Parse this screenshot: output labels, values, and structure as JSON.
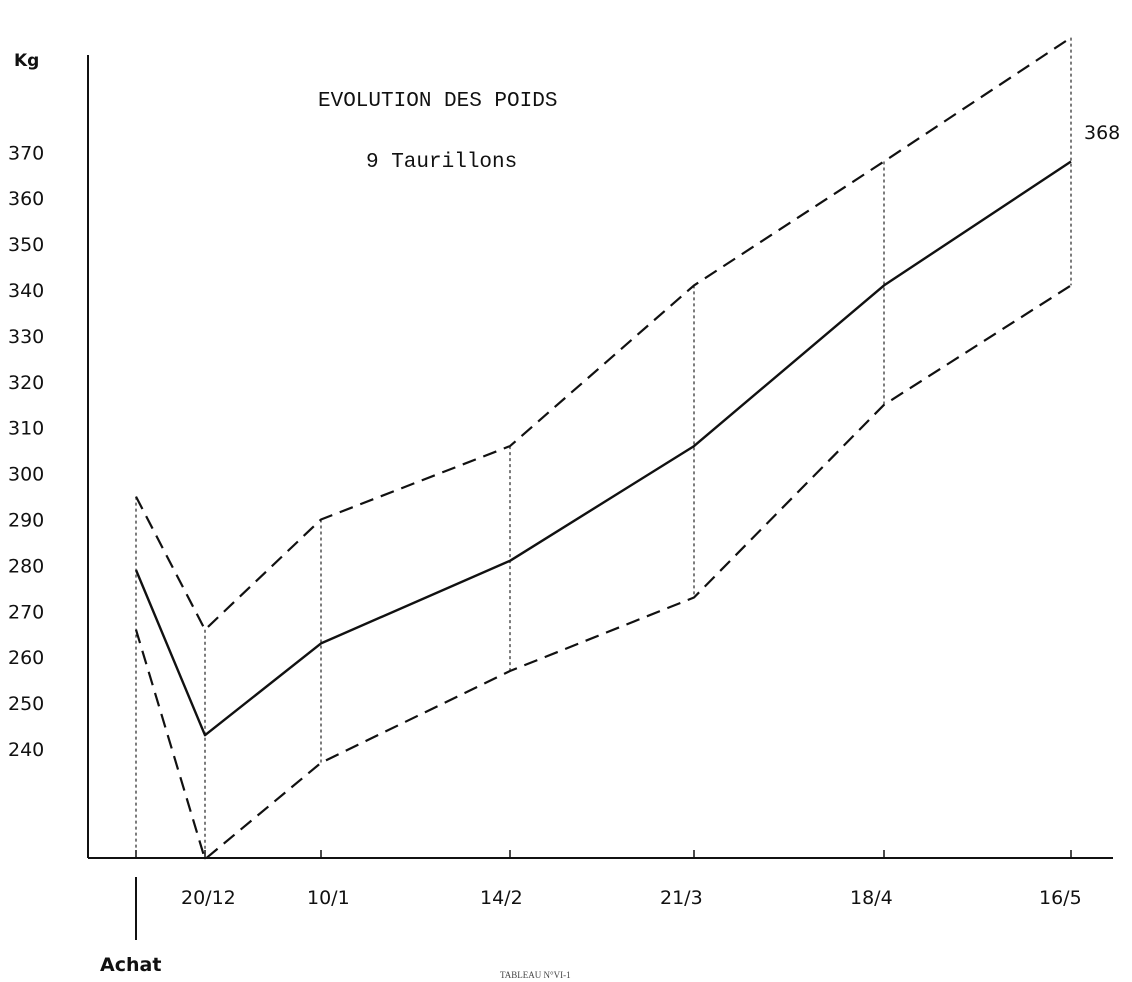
{
  "chart_data": {
    "type": "line",
    "title": "EVOLUTION DES POIDS",
    "subtitle": "9 Taurillons",
    "ylabel": "Kg",
    "xlabel": "",
    "x_extra_label": "Achat",
    "footer": "TABLEAU N°VI-1",
    "categories": [
      "Achat",
      "20/12",
      "10/1",
      "14/2",
      "21/3",
      "18/4",
      "16/5"
    ],
    "x_tick_labels": [
      "",
      "20/12",
      "10/1",
      "14/2",
      "21/3",
      "18/4",
      "16/5"
    ],
    "y_ticks": [
      240,
      250,
      260,
      270,
      280,
      290,
      300,
      310,
      320,
      330,
      340,
      350,
      360,
      370
    ],
    "ylim": [
      212,
      376
    ],
    "grid": false,
    "series": [
      {
        "values": [
          279,
          243,
          263,
          281,
          306,
          341,
          368
        ],
        "style": "solid"
      },
      {
        "values": [
          295,
          266,
          290,
          306,
          341,
          368,
          395
        ],
        "style": "dashed"
      },
      {
        "values": [
          266,
          216,
          237,
          257,
          273,
          315,
          341
        ],
        "style": "dashed"
      }
    ],
    "end_label": "368",
    "colors": {
      "line": "#111111"
    }
  }
}
